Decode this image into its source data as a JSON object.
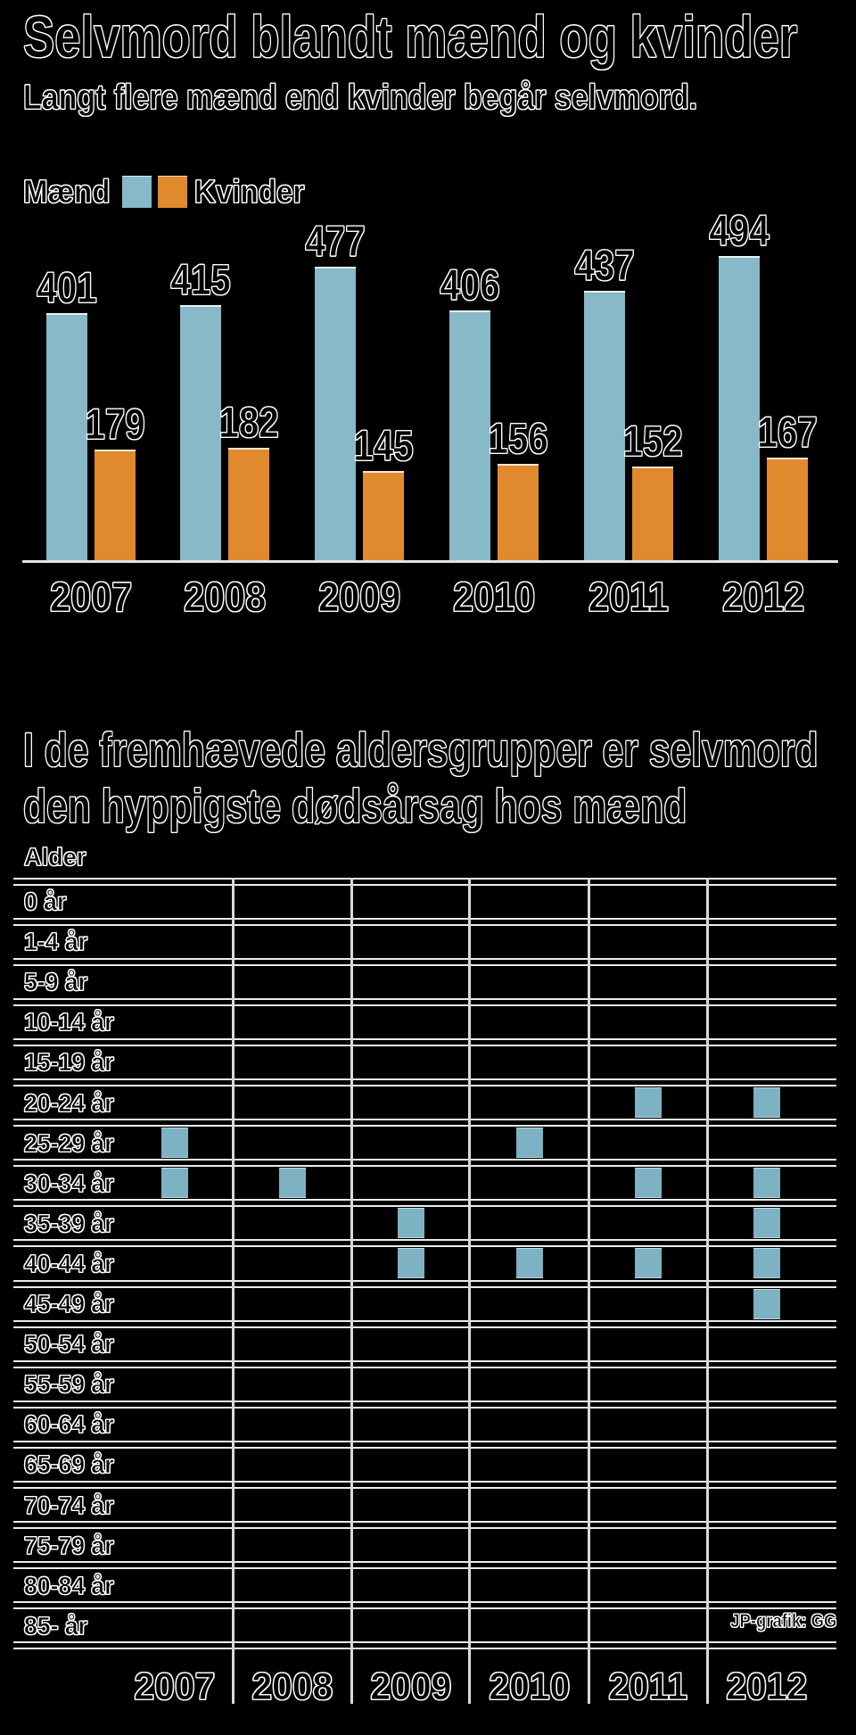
{
  "title": "Selvmord blandt mænd og kvinder",
  "subtitle": "Langt flere mænd end kvinder begår selvmord.",
  "colors": {
    "background": "#000000",
    "maend": "#87b9c8",
    "kvinder": "#e1892d",
    "highlight": "#7db2c3",
    "grid_horizontal": "#ececec",
    "grid_vertical": "#d9d9d9",
    "baseline": "#e0e4e4",
    "text_outline": "#ffffff"
  },
  "chart_data": [
    {
      "type": "bar",
      "title": "Selvmord blandt mænd og kvinder",
      "subtitle": "Langt flere mænd end kvinder begår selvmord.",
      "categories": [
        "2007",
        "2008",
        "2009",
        "2010",
        "2011",
        "2012"
      ],
      "series": [
        {
          "name": "Mænd",
          "color": "#87b9c8",
          "values": [
            401,
            415,
            477,
            406,
            437,
            494
          ]
        },
        {
          "name": "Kvinder",
          "color": "#e1892d",
          "values": [
            179,
            182,
            145,
            156,
            152,
            167
          ]
        }
      ],
      "value_labels": true,
      "legend_position": "top-left",
      "ylim": [
        0,
        500
      ],
      "grid": false
    },
    {
      "type": "heatmap",
      "title": "I de fremhævede aldersgrupper er selvmord den hyppigste dødsårsag hos mænd",
      "title_lines": [
        "I de fremhævede aldersgrupper er selvmord",
        "den hyppigste dødsårsag hos mænd"
      ],
      "row_axis_label": "Alder",
      "columns": [
        "2007",
        "2008",
        "2009",
        "2010",
        "2011",
        "2012"
      ],
      "rows": [
        "0 år",
        "1-4 år",
        "5-9 år",
        "10-14 år",
        "15-19 år",
        "20-24 år",
        "25-29 år",
        "30-34 år",
        "35-39 år",
        "40-44 år",
        "45-49 år",
        "50-54 år",
        "55-59 år",
        "60-64 år",
        "65-69 år",
        "70-74 år",
        "75-79 år",
        "80-84 år",
        "85- år"
      ],
      "highlighted_cells": {
        "20-24 år": [
          "2011",
          "2012"
        ],
        "25-29 år": [
          "2007",
          "2010"
        ],
        "30-34 år": [
          "2007",
          "2008",
          "2011",
          "2012"
        ],
        "35-39 år": [
          "2009",
          "2012"
        ],
        "40-44 år": [
          "2009",
          "2010",
          "2011",
          "2012"
        ],
        "45-49 år": [
          "2012"
        ]
      },
      "highlight_color": "#7db2c3",
      "credit": "JP-grafik: GG"
    }
  ]
}
